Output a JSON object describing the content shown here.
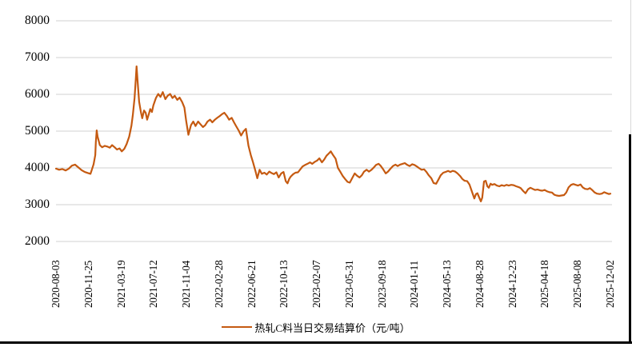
{
  "chart_data": {
    "type": "line",
    "title": "",
    "xlabel": "",
    "ylabel": "",
    "ylim": [
      2000,
      8000
    ],
    "y_ticks": [
      8000,
      7000,
      6000,
      5000,
      4000,
      3000,
      2000
    ],
    "x_ticks": [
      "2020-08-03",
      "2020-11-25",
      "2021-03-19",
      "2021-07-12",
      "2021-11-04",
      "2022-02-28",
      "2022-06-21",
      "2022-10-13",
      "2023-02-07",
      "2023-05-31",
      "2023-09-18",
      "2024-01-11",
      "2024-05-13",
      "2024-08-28",
      "2024-12-23",
      "2025-04-18",
      "2025-08-08",
      "2025-12-02"
    ],
    "grid": "horizontal",
    "gridline_color": "#d9d9d9",
    "axis_text_color": "#000000",
    "legend_position": "bottom-center",
    "series": [
      {
        "name": "热轧C料当日交易结算价（元/吨）",
        "color": "#C55A11",
        "points": [
          [
            "2020-08-03",
            3980
          ],
          [
            "2020-08-14",
            3950
          ],
          [
            "2020-08-25",
            3970
          ],
          [
            "2020-09-06",
            3930
          ],
          [
            "2020-09-17",
            3980
          ],
          [
            "2020-09-28",
            4060
          ],
          [
            "2020-10-09",
            4090
          ],
          [
            "2020-10-21",
            4010
          ],
          [
            "2020-11-01",
            3940
          ],
          [
            "2020-11-12",
            3890
          ],
          [
            "2020-11-23",
            3860
          ],
          [
            "2020-12-02",
            3840
          ],
          [
            "2020-12-07",
            3950
          ],
          [
            "2020-12-13",
            4100
          ],
          [
            "2020-12-19",
            4350
          ],
          [
            "2020-12-21",
            4700
          ],
          [
            "2020-12-24",
            5020
          ],
          [
            "2020-12-27",
            4850
          ],
          [
            "2021-01-04",
            4620
          ],
          [
            "2021-01-12",
            4560
          ],
          [
            "2021-01-21",
            4600
          ],
          [
            "2021-01-30",
            4580
          ],
          [
            "2021-02-08",
            4550
          ],
          [
            "2021-02-16",
            4620
          ],
          [
            "2021-02-25",
            4560
          ],
          [
            "2021-03-05",
            4500
          ],
          [
            "2021-03-14",
            4530
          ],
          [
            "2021-03-22",
            4450
          ],
          [
            "2021-03-31",
            4520
          ],
          [
            "2021-04-08",
            4650
          ],
          [
            "2021-04-17",
            4850
          ],
          [
            "2021-04-25",
            5150
          ],
          [
            "2021-04-30",
            5450
          ],
          [
            "2021-05-06",
            5900
          ],
          [
            "2021-05-10",
            6400
          ],
          [
            "2021-05-13",
            6760
          ],
          [
            "2021-05-17",
            6300
          ],
          [
            "2021-05-22",
            5800
          ],
          [
            "2021-05-28",
            5520
          ],
          [
            "2021-06-02",
            5350
          ],
          [
            "2021-06-08",
            5560
          ],
          [
            "2021-06-14",
            5500
          ],
          [
            "2021-06-19",
            5310
          ],
          [
            "2021-06-25",
            5460
          ],
          [
            "2021-06-30",
            5600
          ],
          [
            "2021-07-06",
            5520
          ],
          [
            "2021-07-11",
            5700
          ],
          [
            "2021-07-20",
            5900
          ],
          [
            "2021-07-28",
            6010
          ],
          [
            "2021-08-05",
            5930
          ],
          [
            "2021-08-13",
            6060
          ],
          [
            "2021-08-22",
            5870
          ],
          [
            "2021-08-30",
            5960
          ],
          [
            "2021-09-08",
            6010
          ],
          [
            "2021-09-16",
            5900
          ],
          [
            "2021-09-24",
            5960
          ],
          [
            "2021-10-03",
            5850
          ],
          [
            "2021-10-11",
            5910
          ],
          [
            "2021-10-20",
            5790
          ],
          [
            "2021-10-28",
            5640
          ],
          [
            "2021-11-03",
            5280
          ],
          [
            "2021-11-11",
            4900
          ],
          [
            "2021-11-20",
            5160
          ],
          [
            "2021-11-28",
            5260
          ],
          [
            "2021-12-06",
            5140
          ],
          [
            "2021-12-15",
            5260
          ],
          [
            "2021-12-23",
            5190
          ],
          [
            "2022-01-01",
            5110
          ],
          [
            "2022-01-09",
            5160
          ],
          [
            "2022-01-17",
            5260
          ],
          [
            "2022-01-26",
            5310
          ],
          [
            "2022-02-03",
            5240
          ],
          [
            "2022-02-12",
            5310
          ],
          [
            "2022-02-20",
            5360
          ],
          [
            "2022-03-01",
            5410
          ],
          [
            "2022-03-09",
            5460
          ],
          [
            "2022-03-17",
            5500
          ],
          [
            "2022-03-26",
            5410
          ],
          [
            "2022-04-03",
            5310
          ],
          [
            "2022-04-12",
            5360
          ],
          [
            "2022-04-20",
            5240
          ],
          [
            "2022-04-28",
            5130
          ],
          [
            "2022-05-07",
            5010
          ],
          [
            "2022-05-15",
            4880
          ],
          [
            "2022-05-24",
            5000
          ],
          [
            "2022-06-01",
            5060
          ],
          [
            "2022-06-10",
            4600
          ],
          [
            "2022-06-18",
            4350
          ],
          [
            "2022-06-26",
            4150
          ],
          [
            "2022-07-05",
            3900
          ],
          [
            "2022-07-11",
            3720
          ],
          [
            "2022-07-19",
            3950
          ],
          [
            "2022-07-27",
            3840
          ],
          [
            "2022-08-05",
            3870
          ],
          [
            "2022-08-13",
            3820
          ],
          [
            "2022-08-22",
            3900
          ],
          [
            "2022-08-30",
            3860
          ],
          [
            "2022-09-07",
            3830
          ],
          [
            "2022-09-16",
            3880
          ],
          [
            "2022-09-24",
            3740
          ],
          [
            "2022-10-03",
            3850
          ],
          [
            "2022-10-11",
            3890
          ],
          [
            "2022-10-19",
            3640
          ],
          [
            "2022-10-25",
            3580
          ],
          [
            "2022-10-31",
            3700
          ],
          [
            "2022-11-05",
            3760
          ],
          [
            "2022-11-14",
            3830
          ],
          [
            "2022-11-22",
            3870
          ],
          [
            "2022-12-01",
            3880
          ],
          [
            "2022-12-09",
            3960
          ],
          [
            "2022-12-17",
            4040
          ],
          [
            "2022-12-26",
            4080
          ],
          [
            "2023-01-03",
            4110
          ],
          [
            "2023-01-12",
            4150
          ],
          [
            "2023-01-20",
            4110
          ],
          [
            "2023-01-28",
            4160
          ],
          [
            "2023-02-06",
            4200
          ],
          [
            "2023-02-14",
            4260
          ],
          [
            "2023-02-23",
            4150
          ],
          [
            "2023-03-03",
            4230
          ],
          [
            "2023-03-11",
            4330
          ],
          [
            "2023-03-20",
            4400
          ],
          [
            "2023-03-26",
            4450
          ],
          [
            "2023-04-03",
            4350
          ],
          [
            "2023-04-12",
            4250
          ],
          [
            "2023-04-20",
            4000
          ],
          [
            "2023-04-28",
            3900
          ],
          [
            "2023-05-07",
            3780
          ],
          [
            "2023-05-15",
            3700
          ],
          [
            "2023-05-24",
            3620
          ],
          [
            "2023-06-01",
            3600
          ],
          [
            "2023-06-09",
            3720
          ],
          [
            "2023-06-18",
            3850
          ],
          [
            "2023-06-26",
            3790
          ],
          [
            "2023-07-05",
            3740
          ],
          [
            "2023-07-13",
            3800
          ],
          [
            "2023-07-21",
            3900
          ],
          [
            "2023-07-30",
            3950
          ],
          [
            "2023-08-07",
            3900
          ],
          [
            "2023-08-16",
            3950
          ],
          [
            "2023-08-24",
            4010
          ],
          [
            "2023-09-01",
            4080
          ],
          [
            "2023-09-10",
            4110
          ],
          [
            "2023-09-18",
            4050
          ],
          [
            "2023-09-27",
            3950
          ],
          [
            "2023-10-05",
            3850
          ],
          [
            "2023-10-13",
            3900
          ],
          [
            "2023-10-22",
            3980
          ],
          [
            "2023-10-30",
            4050
          ],
          [
            "2023-11-08",
            4090
          ],
          [
            "2023-11-16",
            4050
          ],
          [
            "2023-11-24",
            4090
          ],
          [
            "2023-12-03",
            4110
          ],
          [
            "2023-12-11",
            4130
          ],
          [
            "2023-12-20",
            4080
          ],
          [
            "2023-12-28",
            4050
          ],
          [
            "2024-01-06",
            4100
          ],
          [
            "2024-01-14",
            4080
          ],
          [
            "2024-01-22",
            4040
          ],
          [
            "2024-01-31",
            3990
          ],
          [
            "2024-02-08",
            3950
          ],
          [
            "2024-02-17",
            3960
          ],
          [
            "2024-02-25",
            3890
          ],
          [
            "2024-03-04",
            3800
          ],
          [
            "2024-03-13",
            3720
          ],
          [
            "2024-03-21",
            3590
          ],
          [
            "2024-03-30",
            3570
          ],
          [
            "2024-04-07",
            3680
          ],
          [
            "2024-04-15",
            3800
          ],
          [
            "2024-04-24",
            3870
          ],
          [
            "2024-05-02",
            3890
          ],
          [
            "2024-05-11",
            3920
          ],
          [
            "2024-05-19",
            3890
          ],
          [
            "2024-05-27",
            3920
          ],
          [
            "2024-06-05",
            3900
          ],
          [
            "2024-06-13",
            3850
          ],
          [
            "2024-06-22",
            3780
          ],
          [
            "2024-06-30",
            3700
          ],
          [
            "2024-07-08",
            3650
          ],
          [
            "2024-07-17",
            3640
          ],
          [
            "2024-07-25",
            3550
          ],
          [
            "2024-08-03",
            3350
          ],
          [
            "2024-08-11",
            3170
          ],
          [
            "2024-08-17",
            3290
          ],
          [
            "2024-08-22",
            3310
          ],
          [
            "2024-08-28",
            3200
          ],
          [
            "2024-09-03",
            3090
          ],
          [
            "2024-09-08",
            3190
          ],
          [
            "2024-09-14",
            3630
          ],
          [
            "2024-09-20",
            3650
          ],
          [
            "2024-09-26",
            3500
          ],
          [
            "2024-10-01",
            3460
          ],
          [
            "2024-10-07",
            3570
          ],
          [
            "2024-10-13",
            3540
          ],
          [
            "2024-10-21",
            3560
          ],
          [
            "2024-10-29",
            3520
          ],
          [
            "2024-11-07",
            3500
          ],
          [
            "2024-11-15",
            3530
          ],
          [
            "2024-11-24",
            3510
          ],
          [
            "2024-12-02",
            3540
          ],
          [
            "2024-12-10",
            3520
          ],
          [
            "2024-12-19",
            3540
          ],
          [
            "2024-12-27",
            3530
          ],
          [
            "2025-01-05",
            3500
          ],
          [
            "2025-01-13",
            3480
          ],
          [
            "2025-01-21",
            3450
          ],
          [
            "2025-01-30",
            3370
          ],
          [
            "2025-02-07",
            3310
          ],
          [
            "2025-02-16",
            3420
          ],
          [
            "2025-02-24",
            3460
          ],
          [
            "2025-03-04",
            3430
          ],
          [
            "2025-03-13",
            3400
          ],
          [
            "2025-03-21",
            3410
          ],
          [
            "2025-03-30",
            3390
          ],
          [
            "2025-04-07",
            3380
          ],
          [
            "2025-04-15",
            3400
          ],
          [
            "2025-04-24",
            3360
          ],
          [
            "2025-05-02",
            3340
          ],
          [
            "2025-05-11",
            3330
          ],
          [
            "2025-05-19",
            3270
          ],
          [
            "2025-05-27",
            3250
          ],
          [
            "2025-06-05",
            3240
          ],
          [
            "2025-06-13",
            3250
          ],
          [
            "2025-06-22",
            3260
          ],
          [
            "2025-06-30",
            3330
          ],
          [
            "2025-07-08",
            3470
          ],
          [
            "2025-07-17",
            3540
          ],
          [
            "2025-07-25",
            3560
          ],
          [
            "2025-08-02",
            3540
          ],
          [
            "2025-08-10",
            3520
          ],
          [
            "2025-08-19",
            3550
          ],
          [
            "2025-08-27",
            3470
          ],
          [
            "2025-09-04",
            3430
          ],
          [
            "2025-09-13",
            3420
          ],
          [
            "2025-09-21",
            3450
          ],
          [
            "2025-09-29",
            3400
          ],
          [
            "2025-10-08",
            3330
          ],
          [
            "2025-10-16",
            3300
          ],
          [
            "2025-10-25",
            3290
          ],
          [
            "2025-11-02",
            3300
          ],
          [
            "2025-11-10",
            3340
          ],
          [
            "2025-11-19",
            3310
          ],
          [
            "2025-11-27",
            3290
          ],
          [
            "2025-12-02",
            3300
          ]
        ]
      }
    ]
  }
}
